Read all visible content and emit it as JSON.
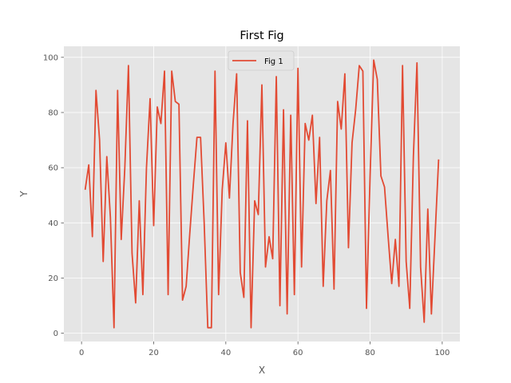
{
  "chart_data": {
    "type": "line",
    "title": "First Fig",
    "xlabel": "X",
    "ylabel": "Y",
    "xlim": [
      -4.9,
      104.9
    ],
    "ylim": [
      -3.0,
      104.0
    ],
    "xticks": [
      0,
      20,
      40,
      60,
      80,
      100
    ],
    "yticks": [
      0,
      20,
      40,
      60,
      80,
      100
    ],
    "grid": true,
    "legend_position": "top-center",
    "colors": {
      "line": "#E24A33",
      "plot_background": "#E5E5E5",
      "grid": "#FFFFFF",
      "figure_background": "#FFFFFF",
      "tick_text": "#555555"
    },
    "series": [
      {
        "name": "Fig 1",
        "x": [
          1,
          2,
          3,
          4,
          5,
          6,
          7,
          8,
          9,
          10,
          11,
          12,
          13,
          14,
          15,
          16,
          17,
          18,
          19,
          20,
          21,
          22,
          23,
          24,
          25,
          26,
          27,
          28,
          29,
          30,
          31,
          32,
          33,
          34,
          35,
          36,
          37,
          38,
          39,
          40,
          41,
          42,
          43,
          44,
          45,
          46,
          47,
          48,
          49,
          50,
          51,
          52,
          53,
          54,
          55,
          56,
          57,
          58,
          59,
          60,
          61,
          62,
          63,
          64,
          65,
          66,
          67,
          68,
          69,
          70,
          71,
          72,
          73,
          74,
          75,
          76,
          77,
          78,
          79,
          80,
          81,
          82,
          83,
          84,
          85,
          86,
          87,
          88,
          89,
          90,
          91,
          92,
          93,
          94,
          95,
          96,
          97,
          98,
          99
        ],
        "y": [
          52,
          61,
          35,
          88,
          70,
          26,
          64,
          42,
          2,
          88,
          34,
          60,
          97,
          29,
          11,
          48,
          14,
          60,
          85,
          39,
          82,
          76,
          95,
          14,
          95,
          84,
          83,
          12,
          17,
          36,
          54,
          71,
          71,
          40,
          2,
          2,
          95,
          14,
          52,
          69,
          49,
          76,
          94,
          22,
          13,
          77,
          2,
          48,
          43,
          90,
          24,
          35,
          27,
          93,
          10,
          81,
          7,
          79,
          14,
          96,
          24,
          76,
          70,
          79,
          47,
          71,
          17,
          48,
          59,
          16,
          84,
          74,
          94,
          31,
          69,
          81,
          97,
          95,
          9,
          57,
          99,
          92,
          57,
          53,
          35,
          18,
          34,
          17,
          97,
          26,
          9,
          64,
          98,
          24,
          4,
          45,
          7,
          35,
          63
        ]
      }
    ]
  }
}
